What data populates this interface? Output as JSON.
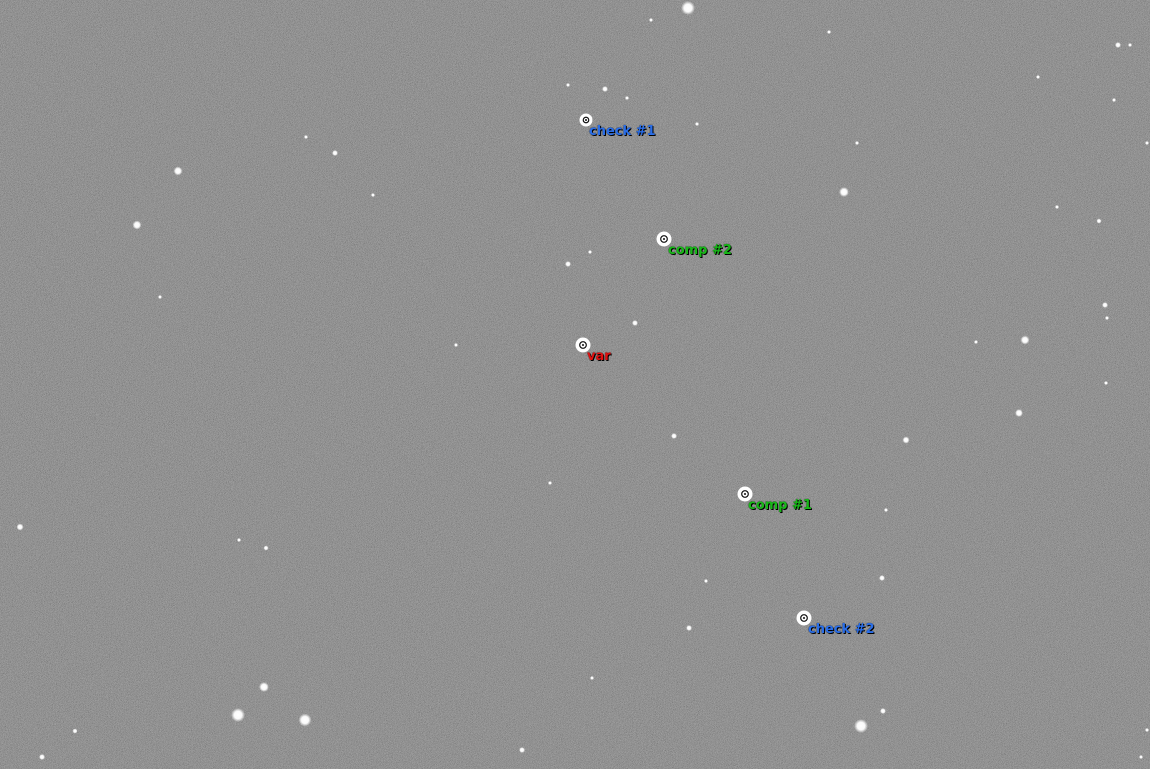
{
  "image": {
    "background_color": "#6e6e6e",
    "noise_colors": [
      "#5a5a5a",
      "#838383"
    ]
  },
  "markers": [
    {
      "id": "check-1",
      "label": "check #1",
      "kind": "check",
      "color": "#2a6ee8"
    },
    {
      "id": "comp-2",
      "label": "comp #2",
      "kind": "comp",
      "color": "#18b818"
    },
    {
      "id": "var",
      "label": "var",
      "kind": "var",
      "color": "#e01010"
    },
    {
      "id": "comp-1",
      "label": "comp #1",
      "kind": "comp",
      "color": "#18b818"
    },
    {
      "id": "check-2",
      "label": "check #2",
      "kind": "check",
      "color": "#2a6ee8"
    }
  ]
}
